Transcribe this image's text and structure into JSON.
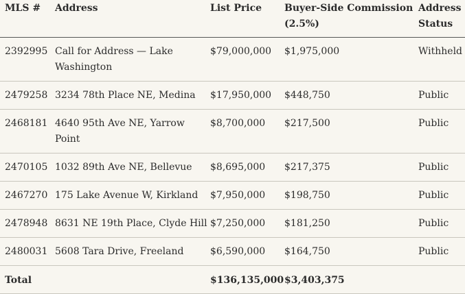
{
  "table": {
    "headers": {
      "mls": "MLS #",
      "address": "Address",
      "list_price": "List Price",
      "commission_line1": "Buyer-Side Commission",
      "commission_line2": "(2.5%)",
      "status_line1": "Address",
      "status_line2": "Status"
    },
    "rows": [
      {
        "mls": "2392995",
        "address": "Call for Address — Lake Washington",
        "price": "$79,000,000",
        "commission": "$1,975,000",
        "status": "Withheld"
      },
      {
        "mls": "2479258",
        "address": "3234 78th Place NE, Medina",
        "price": "$17,950,000",
        "commission": "$448,750",
        "status": "Public"
      },
      {
        "mls": "2468181",
        "address": "4640 95th Ave NE, Yarrow Point",
        "price": "$8,700,000",
        "commission": "$217,500",
        "status": "Public"
      },
      {
        "mls": "2470105",
        "address": "1032 89th Ave NE, Bellevue",
        "price": "$8,695,000",
        "commission": "$217,375",
        "status": "Public"
      },
      {
        "mls": "2467270",
        "address": "175 Lake Avenue W, Kirkland",
        "price": "$7,950,000",
        "commission": "$198,750",
        "status": "Public"
      },
      {
        "mls": "2478948",
        "address": "8631 NE 19th Place, Clyde Hill",
        "price": "$7,250,000",
        "commission": "$181,250",
        "status": "Public"
      },
      {
        "mls": "2480031",
        "address": "5608 Tara Drive, Freeland",
        "price": "$6,590,000",
        "commission": "$164,750",
        "status": "Public"
      }
    ],
    "total": {
      "label": "Total",
      "price": "$136,135,000",
      "commission": "$3,403,375"
    }
  }
}
